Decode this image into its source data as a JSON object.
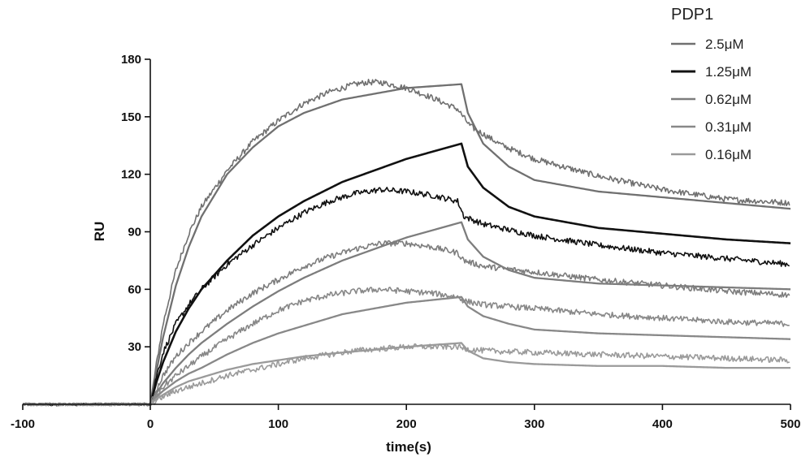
{
  "chart_data": {
    "type": "line",
    "title": "",
    "xlabel": "time(s)",
    "ylabel": "RU",
    "xlim": [
      -100,
      500
    ],
    "ylim": [
      0,
      180
    ],
    "x_ticks": [
      -100,
      0,
      100,
      200,
      300,
      400,
      500
    ],
    "y_ticks": [
      30,
      60,
      90,
      120,
      150,
      180
    ],
    "x_tick_labels": [
      "-100",
      "0",
      "100",
      "200",
      "300",
      "400",
      "500"
    ],
    "y_tick_labels": [
      "30",
      "60",
      "90",
      "120",
      "150",
      "180"
    ],
    "grid": false,
    "legend": {
      "title": "PDP1",
      "position": "top-right"
    },
    "injection_end": 243,
    "series": [
      {
        "name": "2.5μM",
        "color": "#707070",
        "measured": [
          [
            -100,
            0
          ],
          [
            0,
            0
          ],
          [
            5,
            22
          ],
          [
            10,
            42
          ],
          [
            20,
            70
          ],
          [
            30,
            89
          ],
          [
            40,
            103
          ],
          [
            60,
            122
          ],
          [
            80,
            137
          ],
          [
            100,
            148
          ],
          [
            120,
            157
          ],
          [
            140,
            163
          ],
          [
            160,
            167
          ],
          [
            170,
            168
          ],
          [
            180,
            168
          ],
          [
            200,
            165
          ],
          [
            220,
            160
          ],
          [
            240,
            154
          ],
          [
            250,
            145
          ],
          [
            275,
            135
          ],
          [
            300,
            128
          ],
          [
            350,
            119
          ],
          [
            400,
            112
          ],
          [
            450,
            107
          ],
          [
            500,
            105
          ]
        ],
        "fit": [
          [
            0,
            0
          ],
          [
            5,
            18
          ],
          [
            10,
            35
          ],
          [
            20,
            62
          ],
          [
            30,
            82
          ],
          [
            40,
            98
          ],
          [
            60,
            120
          ],
          [
            80,
            134
          ],
          [
            100,
            145
          ],
          [
            120,
            152
          ],
          [
            150,
            159
          ],
          [
            200,
            165
          ],
          [
            243,
            167
          ],
          [
            248,
            152
          ],
          [
            260,
            136
          ],
          [
            280,
            124
          ],
          [
            300,
            117
          ],
          [
            350,
            111
          ],
          [
            400,
            108
          ],
          [
            450,
            105
          ],
          [
            500,
            102
          ]
        ]
      },
      {
        "name": "1.25μM",
        "color": "#111111",
        "measured": [
          [
            -100,
            0
          ],
          [
            0,
            0
          ],
          [
            5,
            15
          ],
          [
            10,
            27
          ],
          [
            20,
            42
          ],
          [
            30,
            52
          ],
          [
            40,
            60
          ],
          [
            60,
            73
          ],
          [
            80,
            83
          ],
          [
            100,
            92
          ],
          [
            120,
            100
          ],
          [
            140,
            106
          ],
          [
            160,
            110
          ],
          [
            180,
            112
          ],
          [
            200,
            111
          ],
          [
            220,
            109
          ],
          [
            240,
            106
          ],
          [
            245,
            98
          ],
          [
            260,
            94
          ],
          [
            280,
            91
          ],
          [
            300,
            88
          ],
          [
            350,
            83
          ],
          [
            400,
            79
          ],
          [
            450,
            76
          ],
          [
            500,
            73
          ]
        ],
        "fit": [
          [
            0,
            0
          ],
          [
            5,
            12
          ],
          [
            10,
            22
          ],
          [
            20,
            38
          ],
          [
            30,
            50
          ],
          [
            40,
            60
          ],
          [
            60,
            75
          ],
          [
            80,
            88
          ],
          [
            100,
            98
          ],
          [
            120,
            106
          ],
          [
            150,
            116
          ],
          [
            200,
            128
          ],
          [
            243,
            136
          ],
          [
            248,
            124
          ],
          [
            260,
            113
          ],
          [
            280,
            103
          ],
          [
            300,
            98
          ],
          [
            350,
            92
          ],
          [
            400,
            89
          ],
          [
            450,
            86
          ],
          [
            500,
            84
          ]
        ]
      },
      {
        "name": "0.62μM",
        "color": "#7d7d7d",
        "measured": [
          [
            -100,
            0
          ],
          [
            0,
            0
          ],
          [
            5,
            8
          ],
          [
            10,
            15
          ],
          [
            20,
            25
          ],
          [
            30,
            32
          ],
          [
            40,
            38
          ],
          [
            60,
            49
          ],
          [
            80,
            58
          ],
          [
            100,
            65
          ],
          [
            120,
            72
          ],
          [
            140,
            77
          ],
          [
            160,
            81
          ],
          [
            180,
            84
          ],
          [
            200,
            84
          ],
          [
            220,
            82
          ],
          [
            240,
            79
          ],
          [
            245,
            75
          ],
          [
            260,
            72
          ],
          [
            300,
            69
          ],
          [
            350,
            65
          ],
          [
            400,
            62
          ],
          [
            450,
            59
          ],
          [
            500,
            57
          ]
        ],
        "fit": [
          [
            0,
            0
          ],
          [
            5,
            6
          ],
          [
            10,
            11
          ],
          [
            20,
            19
          ],
          [
            30,
            26
          ],
          [
            40,
            32
          ],
          [
            60,
            42
          ],
          [
            80,
            51
          ],
          [
            100,
            59
          ],
          [
            120,
            66
          ],
          [
            150,
            75
          ],
          [
            200,
            87
          ],
          [
            243,
            95
          ],
          [
            248,
            86
          ],
          [
            260,
            77
          ],
          [
            280,
            70
          ],
          [
            300,
            66
          ],
          [
            350,
            63
          ],
          [
            400,
            62
          ],
          [
            450,
            61
          ],
          [
            500,
            60
          ]
        ]
      },
      {
        "name": "0.31μM",
        "color": "#888888",
        "measured": [
          [
            -100,
            0
          ],
          [
            0,
            0
          ],
          [
            5,
            5
          ],
          [
            10,
            9
          ],
          [
            20,
            15
          ],
          [
            30,
            20
          ],
          [
            40,
            25
          ],
          [
            60,
            34
          ],
          [
            80,
            42
          ],
          [
            100,
            49
          ],
          [
            120,
            54
          ],
          [
            140,
            57
          ],
          [
            160,
            59
          ],
          [
            180,
            60
          ],
          [
            200,
            59
          ],
          [
            220,
            58
          ],
          [
            240,
            56
          ],
          [
            245,
            54
          ],
          [
            260,
            52
          ],
          [
            300,
            50
          ],
          [
            350,
            47
          ],
          [
            400,
            45
          ],
          [
            450,
            43
          ],
          [
            500,
            42
          ]
        ],
        "fit": [
          [
            0,
            0
          ],
          [
            5,
            4
          ],
          [
            10,
            7
          ],
          [
            20,
            12
          ],
          [
            30,
            16
          ],
          [
            40,
            19
          ],
          [
            60,
            26
          ],
          [
            80,
            32
          ],
          [
            100,
            37
          ],
          [
            120,
            41
          ],
          [
            150,
            47
          ],
          [
            200,
            53
          ],
          [
            243,
            56
          ],
          [
            248,
            51
          ],
          [
            260,
            46
          ],
          [
            280,
            42
          ],
          [
            300,
            39
          ],
          [
            350,
            37
          ],
          [
            400,
            36
          ],
          [
            450,
            35
          ],
          [
            500,
            34
          ]
        ]
      },
      {
        "name": "0.16μM",
        "color": "#9a9a9a",
        "measured": [
          [
            -100,
            0
          ],
          [
            0,
            0
          ],
          [
            5,
            2
          ],
          [
            10,
            4
          ],
          [
            20,
            7
          ],
          [
            30,
            9
          ],
          [
            40,
            11
          ],
          [
            60,
            15
          ],
          [
            80,
            18
          ],
          [
            100,
            21
          ],
          [
            120,
            24
          ],
          [
            140,
            26
          ],
          [
            160,
            28
          ],
          [
            180,
            29
          ],
          [
            200,
            30
          ],
          [
            220,
            30
          ],
          [
            240,
            30
          ],
          [
            245,
            29
          ],
          [
            260,
            28
          ],
          [
            300,
            27
          ],
          [
            350,
            26
          ],
          [
            400,
            25
          ],
          [
            450,
            24
          ],
          [
            500,
            23
          ]
        ],
        "fit": [
          [
            0,
            0
          ],
          [
            5,
            3
          ],
          [
            10,
            5
          ],
          [
            20,
            9
          ],
          [
            30,
            12
          ],
          [
            40,
            14
          ],
          [
            60,
            18
          ],
          [
            80,
            21
          ],
          [
            100,
            23
          ],
          [
            120,
            25
          ],
          [
            150,
            27
          ],
          [
            200,
            30
          ],
          [
            243,
            32
          ],
          [
            248,
            28
          ],
          [
            260,
            24
          ],
          [
            280,
            22
          ],
          [
            300,
            21
          ],
          [
            350,
            20
          ],
          [
            400,
            20
          ],
          [
            450,
            19
          ],
          [
            500,
            19
          ]
        ]
      }
    ]
  }
}
